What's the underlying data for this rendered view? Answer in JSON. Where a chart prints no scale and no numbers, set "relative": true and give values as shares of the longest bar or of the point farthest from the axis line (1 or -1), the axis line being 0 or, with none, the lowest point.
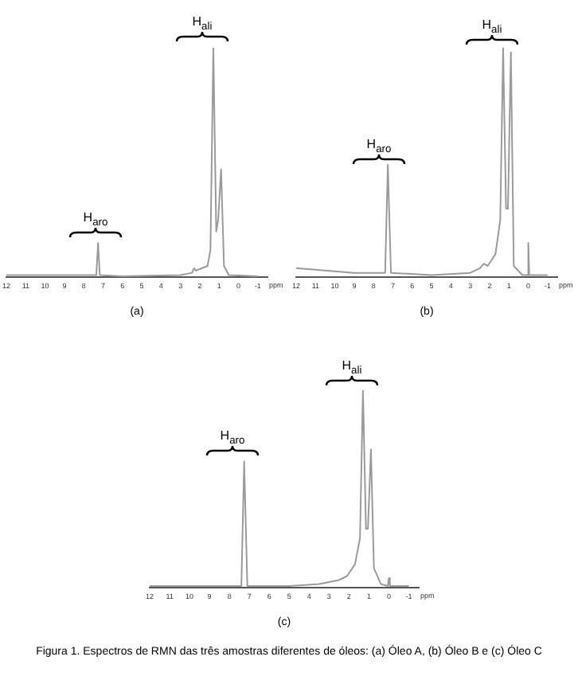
{
  "chart_data": [
    {
      "type": "line",
      "title": "(a)",
      "xlabel": "ppm",
      "relative": true,
      "xlim": [
        12,
        -1.5
      ],
      "xticks": [
        12,
        11,
        10,
        9,
        8,
        7,
        6,
        5,
        4,
        3,
        2,
        1,
        0,
        -1
      ],
      "series": [
        {
          "color": "#9a9a9a",
          "x": [
            12,
            8,
            7.35,
            7.26,
            7.17,
            6,
            3,
            2.4,
            2.3,
            2.2,
            1.6,
            1.45,
            1.3,
            1.15,
            1.05,
            0.9,
            0.75,
            0.5,
            -1
          ],
          "values": [
            0.01,
            0.01,
            0.01,
            0.15,
            0.01,
            0.005,
            0.01,
            0.02,
            0.04,
            0.03,
            0.05,
            0.12,
            1,
            0.2,
            0.25,
            0.47,
            0.05,
            0.01,
            0.005
          ]
        }
      ],
      "annotations": [
        "H$_{aro}$",
        "H$_{ali}$"
      ]
    },
    {
      "type": "line",
      "title": "(b)",
      "xlabel": "ppm",
      "relative": true,
      "xlim": [
        12,
        -1.5
      ],
      "xticks": [
        12,
        11,
        10,
        9,
        8,
        7,
        6,
        5,
        4,
        3,
        2,
        1,
        0,
        -1
      ],
      "series": [
        {
          "color": "#9a9a9a",
          "x": [
            12,
            9,
            7.4,
            7.26,
            7.1,
            5,
            3,
            2.5,
            2.3,
            2.1,
            1.7,
            1.45,
            1.3,
            1.15,
            1.05,
            0.9,
            0.75,
            0.3,
            0.05,
            0,
            -0.05,
            -1
          ],
          "values": [
            0.04,
            0.02,
            0.02,
            0.49,
            0.02,
            0.01,
            0.02,
            0.04,
            0.06,
            0.05,
            0.1,
            0.25,
            1,
            0.3,
            0.3,
            0.98,
            0.05,
            0.01,
            0.01,
            0.15,
            0.01,
            0.01
          ]
        }
      ],
      "annotations": [
        "H$_{aro}$",
        "H$_{ali}$"
      ]
    },
    {
      "type": "line",
      "title": "(c)",
      "xlabel": "ppm",
      "relative": true,
      "xlim": [
        12,
        -1.5
      ],
      "xticks": [
        12,
        11,
        10,
        9,
        8,
        7,
        6,
        5,
        4,
        3,
        2,
        1,
        0,
        -1
      ],
      "series": [
        {
          "color": "#9a9a9a",
          "x": [
            12,
            9,
            7.4,
            7.26,
            7.1,
            5,
            3.5,
            2.5,
            2.1,
            1.7,
            1.45,
            1.3,
            1.15,
            1.05,
            0.9,
            0.75,
            0.4,
            0.05,
            0,
            -0.05,
            -1
          ],
          "values": [
            0.01,
            0.01,
            0.01,
            0.64,
            0.01,
            0.01,
            0.02,
            0.04,
            0.06,
            0.12,
            0.25,
            1,
            0.3,
            0.3,
            0.7,
            0.1,
            0.02,
            0.01,
            0.05,
            0.01,
            0.01
          ]
        }
      ],
      "annotations": [
        "H$_{aro}$",
        "H$_{ali}$",
        "Figura 1. Espectros de RMN das três amostras diferentes de óleos: (a) Óleo A, (b) Óleo B e (c) Óleo C"
      ]
    }
  ]
}
